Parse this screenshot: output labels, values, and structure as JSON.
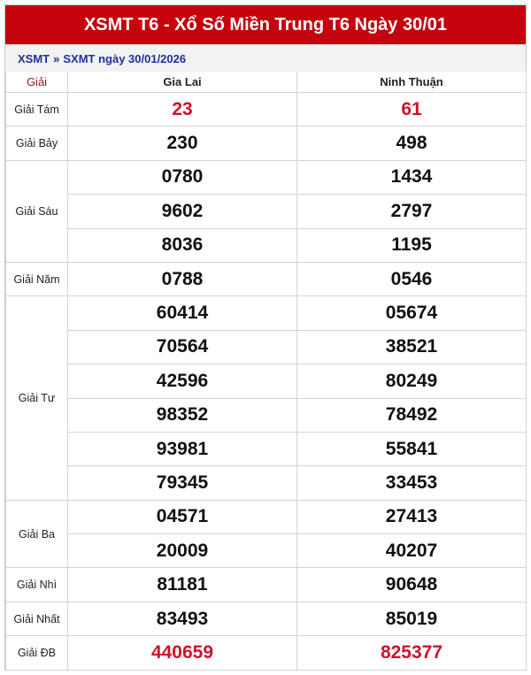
{
  "header": {
    "title": "XSMT T6 - Xổ Số Miền Trung T6 Ngày 30/01"
  },
  "breadcrumb": {
    "items": [
      "XSMT",
      "»",
      "SXMT ngày 30/01/2026"
    ]
  },
  "table": {
    "columns": [
      "Giải",
      "Gia Lai",
      "Ninh Thuận"
    ],
    "accent_color": "#d0112b",
    "prizes": [
      {
        "label": "Giải Tám",
        "highlight": true,
        "rows": [
          [
            "23",
            "61"
          ]
        ]
      },
      {
        "label": "Giải Bảy",
        "rows": [
          [
            "230",
            "498"
          ]
        ]
      },
      {
        "label": "Giải Sáu",
        "rows": [
          [
            "0780",
            "1434"
          ],
          [
            "9602",
            "2797"
          ],
          [
            "8036",
            "1195"
          ]
        ]
      },
      {
        "label": "Giải Năm",
        "rows": [
          [
            "0788",
            "0546"
          ]
        ]
      },
      {
        "label": "Giải Tư",
        "rows": [
          [
            "60414",
            "05674"
          ],
          [
            "70564",
            "38521"
          ],
          [
            "42596",
            "80249"
          ],
          [
            "98352",
            "78492"
          ],
          [
            "93981",
            "55841"
          ],
          [
            "79345",
            "33453"
          ]
        ]
      },
      {
        "label": "Giải Ba",
        "rows": [
          [
            "04571",
            "27413"
          ],
          [
            "20009",
            "40207"
          ]
        ]
      },
      {
        "label": "Giải Nhì",
        "rows": [
          [
            "81181",
            "90648"
          ]
        ]
      },
      {
        "label": "Giải Nhất",
        "rows": [
          [
            "83493",
            "85019"
          ]
        ]
      },
      {
        "label": "Giải ĐB",
        "highlight": true,
        "rows": [
          [
            "440659",
            "825377"
          ]
        ]
      }
    ]
  }
}
